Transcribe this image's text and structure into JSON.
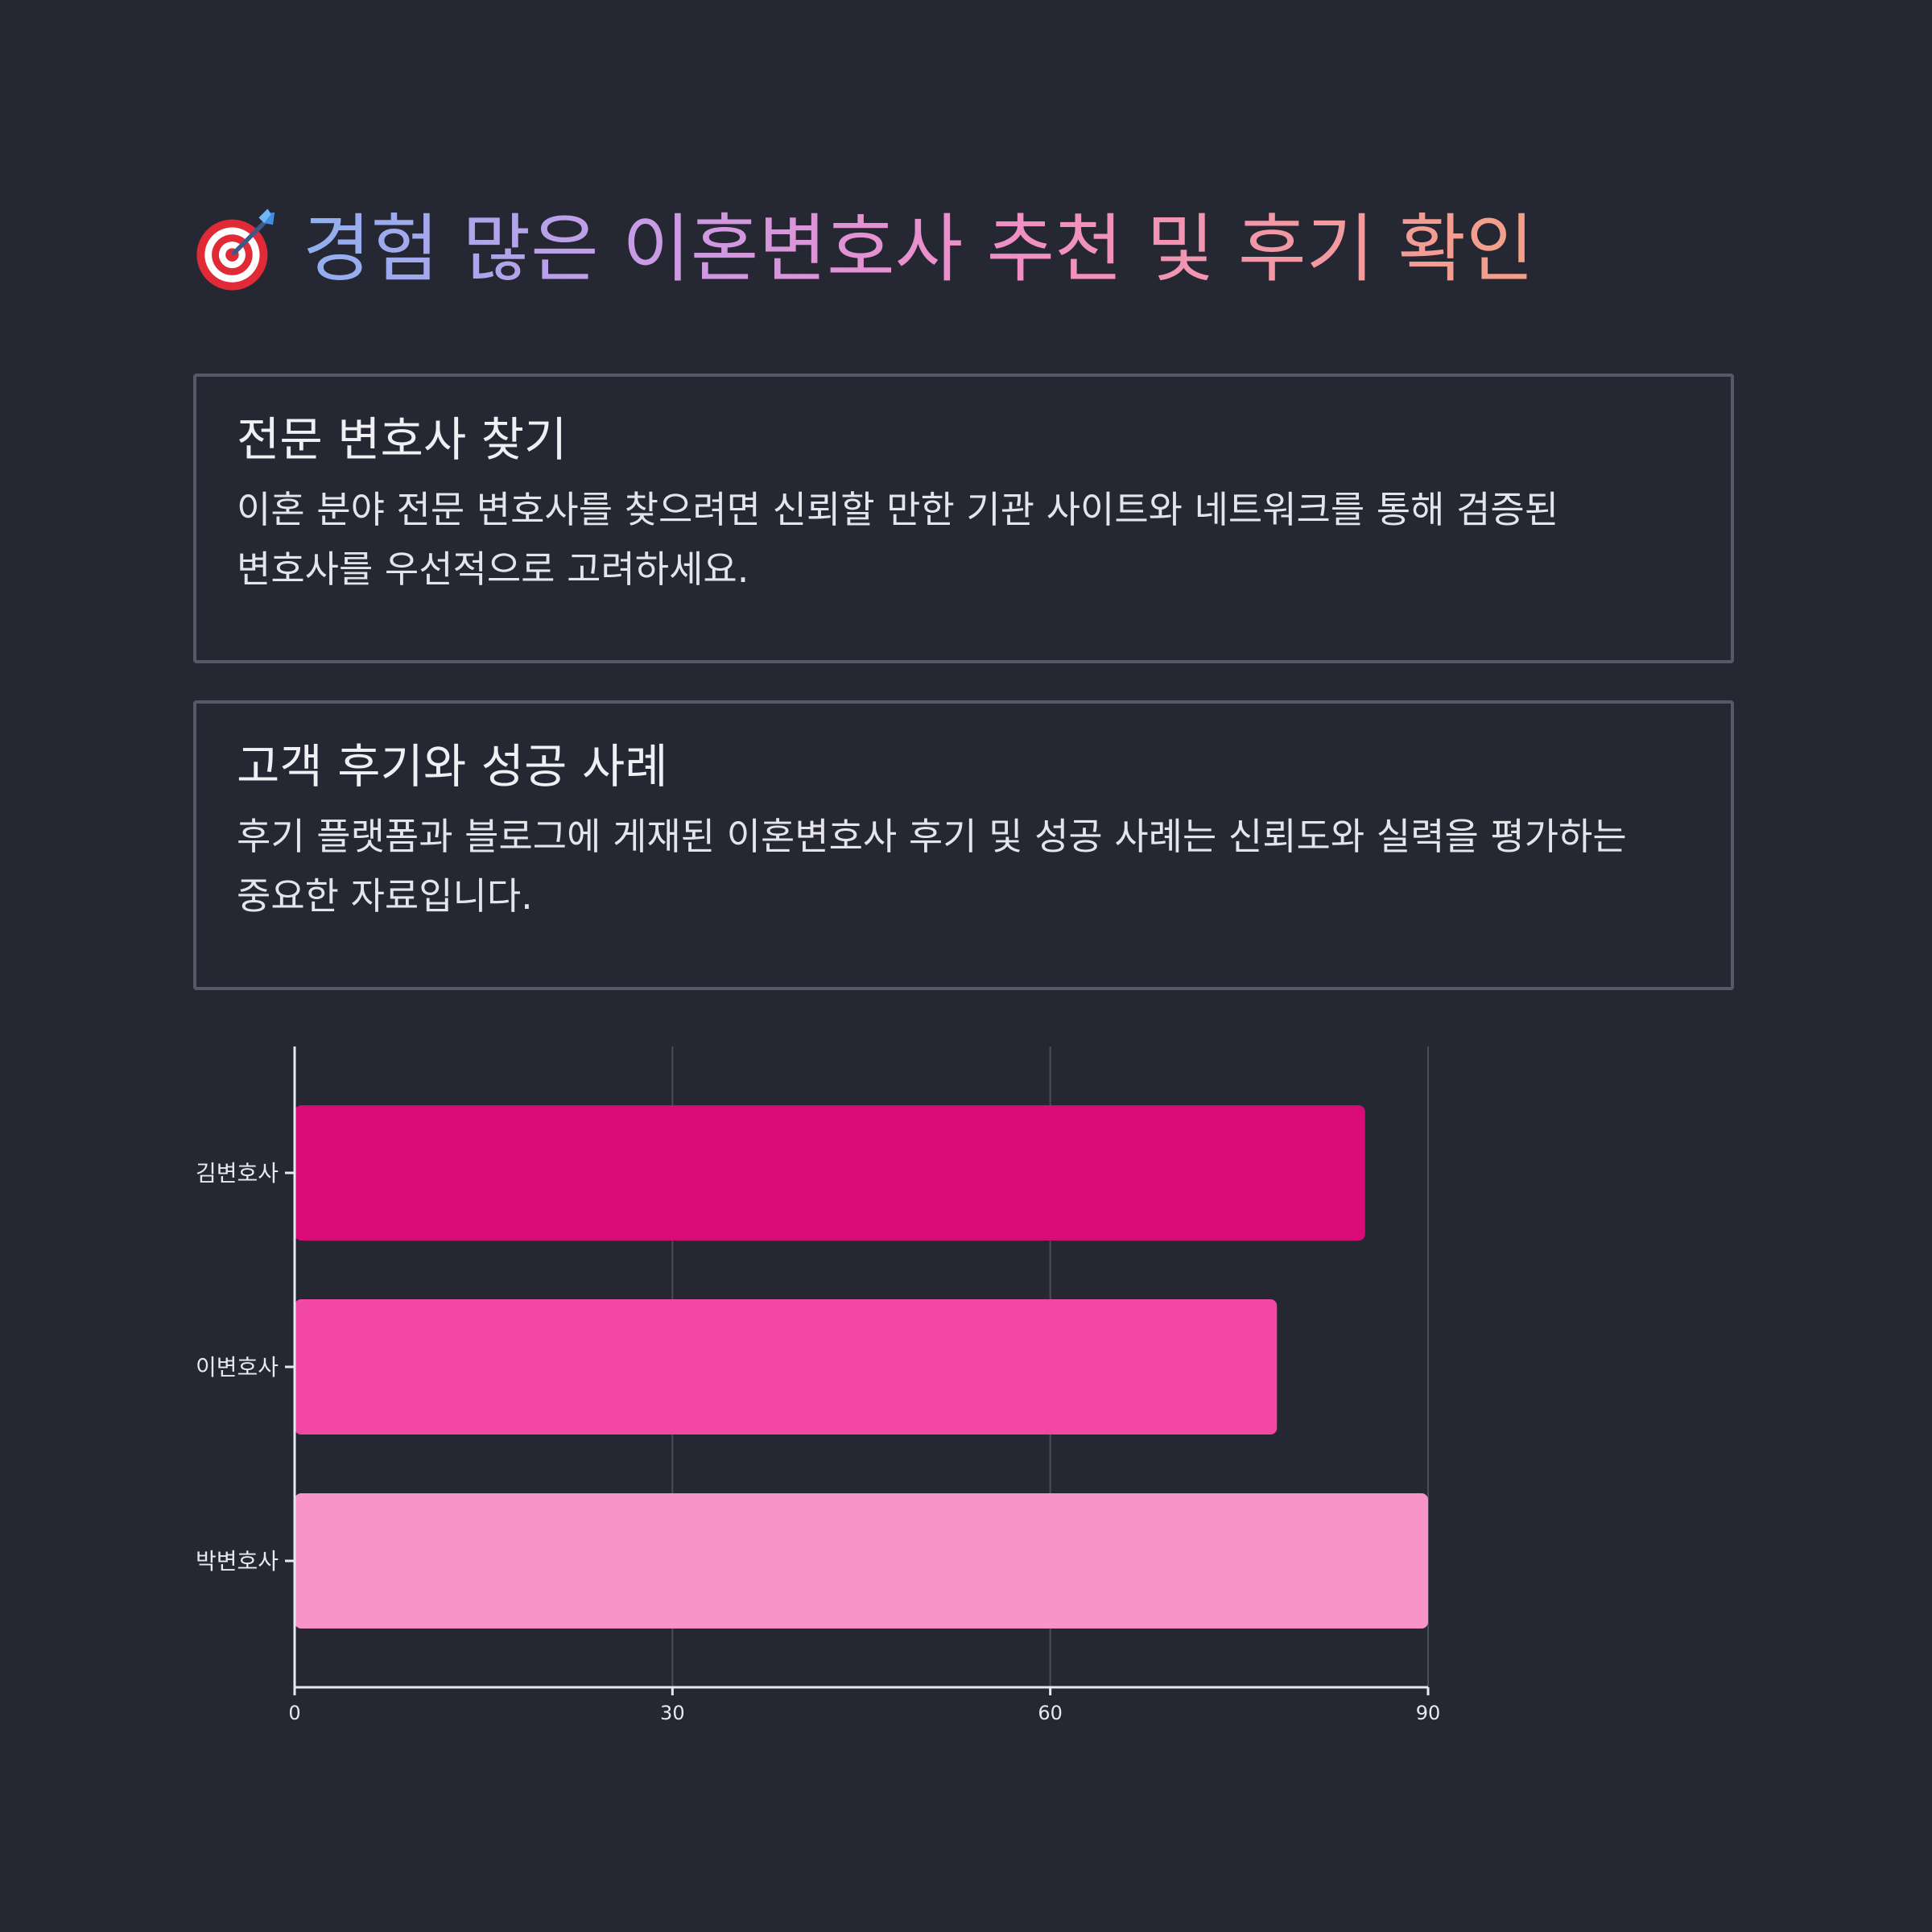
{
  "header": {
    "icon": "target-dart-icon",
    "title": "경험 많은 이혼변호사 추천 및 후기 확인"
  },
  "cards": [
    {
      "title": "전문 변호사 찾기",
      "body": "이혼 분야 전문 변호사를 찾으려면 신뢰할 만한 기관 사이트와 네트워크를 통해 검증된 변호사를 우선적으로 고려하세요."
    },
    {
      "title": "고객 후기와 성공 사례",
      "body": "후기 플랫폼과 블로그에 게재된 이혼변호사 후기 및 성공 사례는 신뢰도와 실력을 평가하는 중요한 자료입니다."
    }
  ],
  "colors": {
    "background": "#252733",
    "card_border": "#565966",
    "axis": "#e8e8ee",
    "grid": "#4a4c58"
  },
  "chart_data": {
    "type": "bar",
    "orientation": "horizontal",
    "categories": [
      "김변호사",
      "이변호사",
      "박변호사"
    ],
    "values": [
      85,
      78,
      90
    ],
    "colors": [
      "#d90b78",
      "#f347a4",
      "#f894c8"
    ],
    "xlim": [
      0,
      90
    ],
    "xticks": [
      "0",
      "30",
      "60",
      "90"
    ],
    "grid": true,
    "title": "",
    "xlabel": "",
    "ylabel": ""
  }
}
